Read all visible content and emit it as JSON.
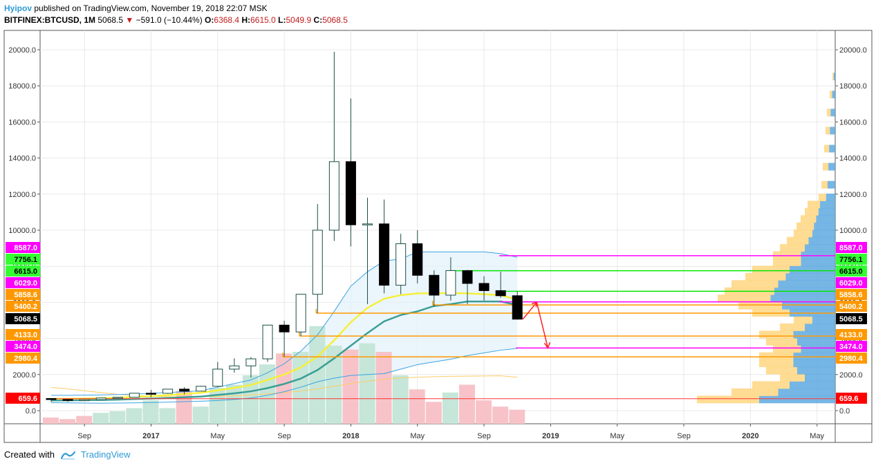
{
  "header": {
    "author": "Hyipov",
    "published": "published on TradingView.com, November 19, 2018 22:07 MSK",
    "symbol": "BITFINEX:BTCUSD, 1M",
    "last": "5068.5",
    "arrow": "▼",
    "change": "−591.0 (−10.44%)",
    "o_label": "O:",
    "o_val": "6368.4",
    "h_label": "H:",
    "h_val": "6615.0",
    "l_label": "L:",
    "l_val": "5049.9",
    "c_label": "C:",
    "c_val": "5068.5"
  },
  "footer": {
    "created": "Created with",
    "brand": "TradingView"
  },
  "colors": {
    "up_fill": "#ffffff",
    "down_fill": "#000000",
    "candle_border": "#1a4d44",
    "vol_up": "#c5e6d8",
    "vol_down": "#f7c3c8",
    "ma_yellow": "#f5f03a",
    "ma_teal": "#3a9e96",
    "bb_blue": "#3aa3e3",
    "magenta": "#ff00ff",
    "green": "#00e600",
    "orange": "#ff9800",
    "red": "#ff3333"
  },
  "chart_data": {
    "type": "candlestick",
    "title": "BITFINEX:BTCUSD, 1M",
    "ylim": [
      -650,
      20600
    ],
    "y_ticks": [
      "20000.0",
      "18000.0",
      "16000.0",
      "14000.0",
      "12000.0",
      "10000.0",
      "8000.0",
      "6000.0",
      "4000.0",
      "2000.0",
      "0.0"
    ],
    "x_ticks": [
      "Sep",
      "2017",
      "May",
      "Sep",
      "2018",
      "May",
      "Sep",
      "2019",
      "May",
      "Sep",
      "2020",
      "May"
    ],
    "candles": [
      {
        "m": "2016-07",
        "o": 670,
        "h": 700,
        "l": 480,
        "c": 620
      },
      {
        "m": "2016-08",
        "o": 620,
        "h": 630,
        "l": 480,
        "c": 575
      },
      {
        "m": "2016-09",
        "o": 575,
        "h": 630,
        "l": 570,
        "c": 610
      },
      {
        "m": "2016-10",
        "o": 610,
        "h": 720,
        "l": 600,
        "c": 700
      },
      {
        "m": "2016-11",
        "o": 700,
        "h": 760,
        "l": 680,
        "c": 740
      },
      {
        "m": "2016-12",
        "o": 740,
        "h": 980,
        "l": 740,
        "c": 965
      },
      {
        "m": "2017-01",
        "o": 965,
        "h": 1150,
        "l": 750,
        "c": 960
      },
      {
        "m": "2017-02",
        "o": 960,
        "h": 1200,
        "l": 930,
        "c": 1190
      },
      {
        "m": "2017-03",
        "o": 1190,
        "h": 1300,
        "l": 900,
        "c": 1080
      },
      {
        "m": "2017-04",
        "o": 1080,
        "h": 1380,
        "l": 1070,
        "c": 1350
      },
      {
        "m": "2017-05",
        "o": 1350,
        "h": 2700,
        "l": 1300,
        "c": 2300
      },
      {
        "m": "2017-06",
        "o": 2300,
        "h": 2900,
        "l": 2100,
        "c": 2480
      },
      {
        "m": "2017-07",
        "o": 2480,
        "h": 2970,
        "l": 1830,
        "c": 2870
      },
      {
        "m": "2017-08",
        "o": 2870,
        "h": 4750,
        "l": 2700,
        "c": 4740
      },
      {
        "m": "2017-09",
        "o": 4740,
        "h": 4980,
        "l": 2980,
        "c": 4360
      },
      {
        "m": "2017-10",
        "o": 4360,
        "h": 6450,
        "l": 4130,
        "c": 6450
      },
      {
        "m": "2017-11",
        "o": 6450,
        "h": 11450,
        "l": 5400,
        "c": 10000
      },
      {
        "m": "2017-12",
        "o": 10000,
        "h": 19890,
        "l": 9400,
        "c": 13800
      },
      {
        "m": "2018-01",
        "o": 13800,
        "h": 17300,
        "l": 9100,
        "c": 10300
      },
      {
        "m": "2018-02",
        "o": 10300,
        "h": 11800,
        "l": 5900,
        "c": 10350
      },
      {
        "m": "2018-03",
        "o": 10350,
        "h": 11700,
        "l": 6500,
        "c": 6950
      },
      {
        "m": "2018-04",
        "o": 6950,
        "h": 9800,
        "l": 6450,
        "c": 9250
      },
      {
        "m": "2018-05",
        "o": 9250,
        "h": 10000,
        "l": 7050,
        "c": 7500
      },
      {
        "m": "2018-06",
        "o": 7500,
        "h": 7780,
        "l": 5750,
        "c": 6400
      },
      {
        "m": "2018-07",
        "o": 6400,
        "h": 8500,
        "l": 6100,
        "c": 7760
      },
      {
        "m": "2018-08",
        "o": 7760,
        "h": 7800,
        "l": 5900,
        "c": 7050
      },
      {
        "m": "2018-09",
        "o": 7050,
        "h": 7450,
        "l": 6100,
        "c": 6650
      },
      {
        "m": "2018-10",
        "o": 6650,
        "h": 7700,
        "l": 6250,
        "c": 6368
      },
      {
        "m": "2018-11",
        "o": 6368.4,
        "h": 6615.0,
        "l": 5049.9,
        "c": 5068.5
      }
    ],
    "volume_up": [
      false,
      false,
      false,
      true,
      true,
      true,
      true,
      true,
      false,
      true,
      true,
      true,
      true,
      true,
      false,
      true,
      true,
      true,
      false,
      true,
      false,
      true,
      false,
      false,
      true,
      false,
      false,
      false,
      false
    ],
    "volume_rel": [
      0.08,
      0.06,
      0.1,
      0.14,
      0.16,
      0.2,
      0.3,
      0.2,
      0.42,
      0.22,
      0.46,
      0.5,
      0.62,
      0.76,
      0.9,
      0.92,
      1.25,
      1.0,
      0.95,
      1.03,
      0.92,
      0.62,
      0.44,
      0.28,
      0.4,
      0.5,
      0.3,
      0.22,
      0.18
    ],
    "lines": {
      "yellow_ma": [
        650,
        660,
        670,
        690,
        720,
        760,
        800,
        860,
        920,
        990,
        1120,
        1260,
        1420,
        1700,
        2000,
        2400,
        3000,
        3900,
        4900,
        5700,
        6200,
        6400,
        6500,
        6500,
        6520,
        6500,
        6450,
        6400,
        6150
      ],
      "teal_ma": [
        560,
        570,
        580,
        590,
        610,
        640,
        670,
        700,
        740,
        780,
        870,
        960,
        1070,
        1250,
        1480,
        1780,
        2250,
        2900,
        3600,
        4300,
        4950,
        5300,
        5500,
        5800,
        5900,
        6050,
        6050,
        6050,
        5850
      ],
      "bb_upper": [
        850,
        850,
        860,
        870,
        890,
        920,
        960,
        1000,
        1050,
        1100,
        1300,
        1500,
        1700,
        2100,
        2600,
        3300,
        4200,
        5500,
        6900,
        7700,
        8300,
        8400,
        8800,
        8800,
        8800,
        8800,
        8800,
        8700,
        8500
      ],
      "bb_lower": [
        440,
        430,
        420,
        410,
        420,
        430,
        450,
        470,
        500,
        520,
        560,
        620,
        700,
        850,
        1050,
        1300,
        1600,
        1800,
        1950,
        2000,
        2050,
        2300,
        2550,
        2700,
        2850,
        3050,
        3200,
        3350,
        3450
      ],
      "slow_ma": [
        1290,
        1200,
        1100,
        1000,
        900,
        850,
        800,
        770,
        760,
        770,
        790,
        820,
        870,
        930,
        1000,
        1080,
        1200,
        1350,
        1500,
        1630,
        1740,
        1810,
        1850,
        1880,
        1900,
        1910,
        1920,
        1930,
        1850
      ]
    },
    "levels": [
      {
        "value": 8587.0,
        "label": "8587.0",
        "color": "magenta",
        "from": "2018-10",
        "y": 8587
      },
      {
        "value": 7756.1,
        "label": "7756.1",
        "color": "green",
        "from": "2018-07",
        "y": 7756
      },
      {
        "value": 6615.0,
        "label": "6615.0",
        "color": "green",
        "from": "2018-10",
        "y": 6615
      },
      {
        "value": 6029.0,
        "label": "6029.0",
        "color": "magenta",
        "from": "2018-10",
        "y": 6029
      },
      {
        "value": 5858.6,
        "label": "5858.6",
        "color": "orange",
        "from": "2018-06",
        "y": 5858
      },
      {
        "value": 5400.2,
        "label": "5400.2",
        "color": "orange",
        "from": "2017-11",
        "y": 5400
      },
      {
        "value": 5068.5,
        "label": "5068.5",
        "color": "black",
        "from": null,
        "y": 5068
      },
      {
        "value": 4133.0,
        "label": "4133.0",
        "color": "orange",
        "from": "2017-10",
        "y": 4133
      },
      {
        "value": 3474.0,
        "label": "3474.0",
        "color": "magenta",
        "from": "2018-11",
        "y": 3474
      },
      {
        "value": 2980.4,
        "label": "2980.4",
        "color": "orange",
        "from": "2017-09",
        "y": 2980
      },
      {
        "value": 659.6,
        "label": "659.6",
        "color": "red",
        "from": "2016-07",
        "y": 659.6
      }
    ],
    "forecast_path": [
      {
        "m": "2018-11",
        "v": 5068
      },
      {
        "m": "2018-12",
        "v": 6000
      },
      {
        "m": "2019-01",
        "v": 3474
      }
    ],
    "volume_profile": [
      {
        "price": 600,
        "total": 1.0
      },
      {
        "price": 1000,
        "total": 0.75
      },
      {
        "price": 1400,
        "total": 0.6
      },
      {
        "price": 1800,
        "total": 0.4
      },
      {
        "price": 2200,
        "total": 0.5
      },
      {
        "price": 2600,
        "total": 0.55
      },
      {
        "price": 3000,
        "total": 0.55
      },
      {
        "price": 3400,
        "total": 0.45
      },
      {
        "price": 3800,
        "total": 0.5
      },
      {
        "price": 4200,
        "total": 0.55
      },
      {
        "price": 4600,
        "total": 0.4
      },
      {
        "price": 5000,
        "total": 0.3
      },
      {
        "price": 5400,
        "total": 0.6
      },
      {
        "price": 5800,
        "total": 0.7
      },
      {
        "price": 6200,
        "total": 0.85
      },
      {
        "price": 6600,
        "total": 0.8
      },
      {
        "price": 7000,
        "total": 0.75
      },
      {
        "price": 7400,
        "total": 0.65
      },
      {
        "price": 7800,
        "total": 0.6
      },
      {
        "price": 8200,
        "total": 0.45
      },
      {
        "price": 8600,
        "total": 0.45
      },
      {
        "price": 9000,
        "total": 0.4
      },
      {
        "price": 9400,
        "total": 0.35
      },
      {
        "price": 9800,
        "total": 0.3
      },
      {
        "price": 10200,
        "total": 0.28
      },
      {
        "price": 10600,
        "total": 0.25
      },
      {
        "price": 11000,
        "total": 0.22
      },
      {
        "price": 11400,
        "total": 0.2
      },
      {
        "price": 11800,
        "total": 0.12
      },
      {
        "price": 12500,
        "total": 0.1
      },
      {
        "price": 13500,
        "total": 0.09
      },
      {
        "price": 14500,
        "total": 0.08
      },
      {
        "price": 15500,
        "total": 0.07
      },
      {
        "price": 16500,
        "total": 0.06
      },
      {
        "price": 17500,
        "total": 0.04
      },
      {
        "price": 18500,
        "total": 0.02
      }
    ]
  }
}
